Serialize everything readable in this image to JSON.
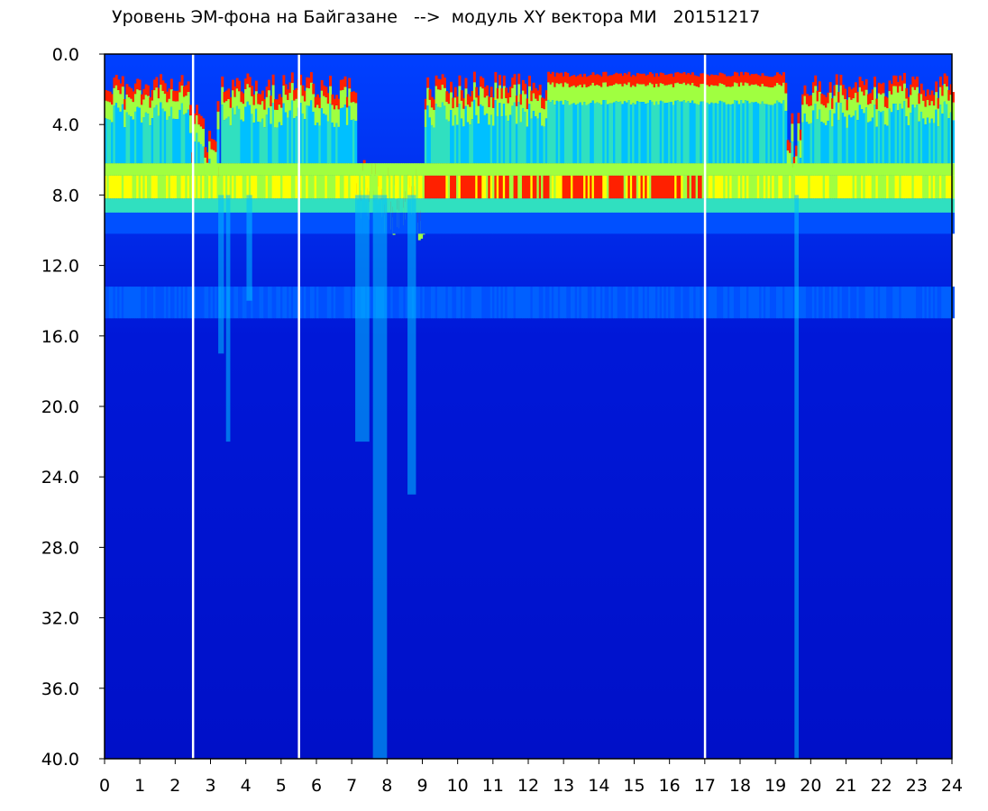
{
  "chart_data": {
    "type": "heatmap",
    "title": "Уровень ЭМ-фона на Байгазане   -->  модуль XY вектора МИ   20151217",
    "x_ticks": [
      "0",
      "1",
      "2",
      "3",
      "4",
      "5",
      "6",
      "7",
      "8",
      "9",
      "10",
      "11",
      "12",
      "13",
      "14",
      "15",
      "16",
      "17",
      "18",
      "19",
      "20",
      "21",
      "22",
      "23",
      "24"
    ],
    "y_ticks": [
      "0.0",
      "4.0",
      "8.0",
      "12.0",
      "16.0",
      "20.0",
      "24.0",
      "28.0",
      "32.0",
      "36.0",
      "40.0"
    ],
    "xlim": [
      0,
      24
    ],
    "ylim": [
      0,
      40
    ],
    "y_inverted": true,
    "grid": false,
    "colormap": [
      "#0010d8",
      "#0050ff",
      "#00c0ff",
      "#30e0c0",
      "#a0ff40",
      "#ffff00",
      "#ff2000",
      "#ffffff"
    ],
    "background_band_top": 40,
    "gap_hours": [
      2.5,
      5.5,
      17.0
    ],
    "description_levels": {
      "upper_band_edge_typical": 1.5,
      "red_band_level": 7.5,
      "cyan_band_level": 14
    }
  }
}
